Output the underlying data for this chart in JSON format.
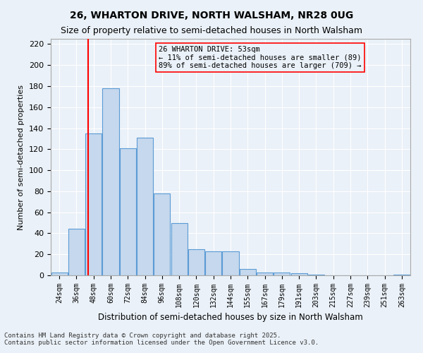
{
  "title1": "26, WHARTON DRIVE, NORTH WALSHAM, NR28 0UG",
  "title2": "Size of property relative to semi-detached houses in North Walsham",
  "xlabel": "Distribution of semi-detached houses by size in North Walsham",
  "ylabel": "Number of semi-detached properties",
  "bins": [
    "24sqm",
    "36sqm",
    "48sqm",
    "60sqm",
    "72sqm",
    "84sqm",
    "96sqm",
    "108sqm",
    "120sqm",
    "132sqm",
    "144sqm",
    "155sqm",
    "167sqm",
    "179sqm",
    "191sqm",
    "203sqm",
    "215sqm",
    "227sqm",
    "239sqm",
    "251sqm",
    "263sqm"
  ],
  "values": [
    3,
    44,
    135,
    178,
    121,
    131,
    78,
    50,
    25,
    23,
    23,
    6,
    3,
    3,
    2,
    1,
    0,
    0,
    0,
    0,
    1
  ],
  "bar_color": "#c5d8ed",
  "bar_edge_color": "#5b9bd5",
  "red_line_x": 1.67,
  "annotation_title": "26 WHARTON DRIVE: 53sqm",
  "annotation_line1": "← 11% of semi-detached houses are smaller (89)",
  "annotation_line2": "89% of semi-detached houses are larger (709) →",
  "ylim": [
    0,
    225
  ],
  "yticks": [
    0,
    20,
    40,
    60,
    80,
    100,
    120,
    140,
    160,
    180,
    200,
    220
  ],
  "footnote1": "Contains HM Land Registry data © Crown copyright and database right 2025.",
  "footnote2": "Contains public sector information licensed under the Open Government Licence v3.0.",
  "bg_color": "#eaf1f8",
  "grid_color": "#ffffff"
}
